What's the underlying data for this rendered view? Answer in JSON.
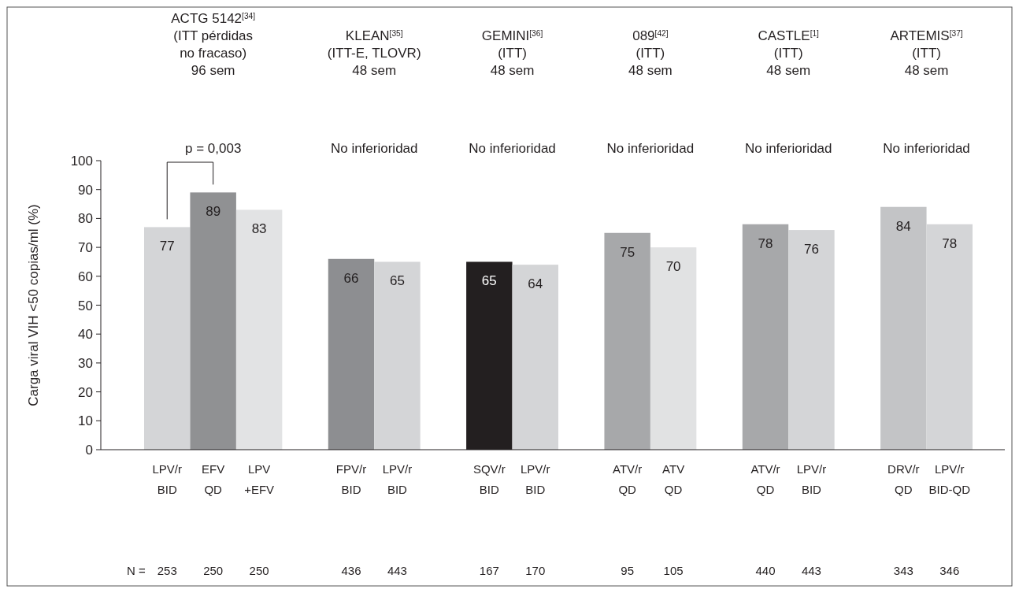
{
  "chart_data": {
    "type": "bar",
    "ylabel": "Carga viral VIH <50 copias/ml (%)",
    "categories": [
      "LPV/r\nBID",
      "EFV\nQD",
      "LPV\n+EFV",
      null,
      "FPV/r\nBID",
      "LPV/r\nBID",
      null,
      "SQV/r\nBID",
      "LPV/r\nBID",
      null,
      "ATV/r\nQD",
      "ATV\nQD",
      null,
      "ATV/r\nQD",
      "LPV/r\nBID",
      null,
      "DRV/r\nQD",
      "LPV/r\nBID-QD"
    ],
    "values": [
      77,
      89,
      83,
      null,
      66,
      65,
      null,
      65,
      64,
      null,
      75,
      70,
      null,
      78,
      76,
      null,
      84,
      78
    ],
    "colors": [
      "#d4d5d7",
      "#909193",
      "#e2e3e4",
      null,
      "#8d8e91",
      "#d4d5d7",
      null,
      "#231f20",
      "#d4d5d7",
      null,
      "#a7a8aa",
      "#e1e2e3",
      null,
      "#a7a8aa",
      "#d4d5d7",
      null,
      "#c3c4c6",
      "#d4d5d7"
    ],
    "data_labels": true,
    "ylim": [
      0,
      100
    ],
    "yticks": [
      0,
      10,
      20,
      30,
      40,
      50,
      60,
      70,
      80,
      90,
      100
    ],
    "grid": false,
    "annotations": [
      "ACTG 5142$^{[34]}$\n(ITT pérdidas\nno fracaso)\n96 sem",
      "KLEAN$^{[35]}$\n(ITT-E, TLOVR)\n48 sem",
      "GEMINI$^{[36]}$\n(ITT)\n48 sem",
      "089$^{[42]}$\n(ITT)\n48 sem",
      "CASTLE$^{[1]}$\n(ITT)\n48 sem",
      "ARTEMIS$^{[37]}$\n(ITT)\n48 sem",
      "p = 0,003",
      "No inferioridad",
      "No inferioridad",
      "No inferioridad",
      "No inferioridad",
      "No inferioridad",
      "N =",
      "253",
      "250",
      "250",
      "436",
      "443",
      "167",
      "170",
      "95",
      "105",
      "440",
      "443",
      "343",
      "346"
    ]
  }
}
